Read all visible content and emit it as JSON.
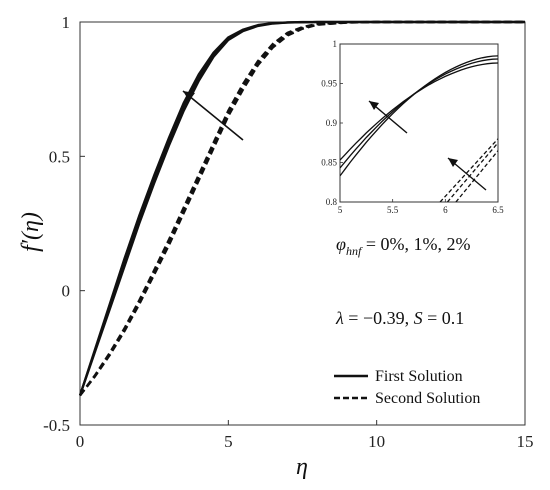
{
  "chart_data": {
    "type": "line",
    "xlabel": "η",
    "ylabel": "f′(η)",
    "xlim": [
      0,
      15
    ],
    "ylim": [
      -0.5,
      1
    ],
    "xticks": [
      "0",
      "5",
      "10",
      "15"
    ],
    "yticks": [
      "-0.5",
      "0",
      "0.5",
      "1"
    ],
    "grid": false,
    "legend_position": "bottom-right",
    "legend": [
      "First Solution",
      "Second Solution"
    ],
    "annotations": {
      "phi_text": "φhnf = 0%, 1%, 2%",
      "params_text": "λ = −0.39, S = 0.1"
    },
    "x": [
      0,
      0.5,
      1,
      1.5,
      2,
      2.5,
      3,
      3.5,
      4,
      4.5,
      5,
      5.5,
      6,
      6.5,
      7,
      7.5,
      8,
      9,
      10,
      11,
      12,
      13,
      14,
      15
    ],
    "series": [
      {
        "name": "First Solution",
        "style": "solid",
        "phi": "0%",
        "values": [
          -0.39,
          -0.23,
          -0.07,
          0.09,
          0.25,
          0.4,
          0.54,
          0.67,
          0.78,
          0.87,
          0.933,
          0.966,
          0.985,
          0.994,
          0.998,
          0.999,
          1,
          1,
          1,
          1,
          1,
          1,
          1,
          1
        ]
      },
      {
        "name": "First Solution",
        "style": "solid",
        "phi": "1%",
        "values": [
          -0.39,
          -0.225,
          -0.06,
          0.105,
          0.265,
          0.415,
          0.555,
          0.685,
          0.792,
          0.878,
          0.938,
          0.969,
          0.987,
          0.995,
          0.998,
          0.999,
          1,
          1,
          1,
          1,
          1,
          1,
          1,
          1
        ]
      },
      {
        "name": "First Solution",
        "style": "solid",
        "phi": "2%",
        "values": [
          -0.39,
          -0.22,
          -0.05,
          0.12,
          0.28,
          0.43,
          0.57,
          0.7,
          0.805,
          0.886,
          0.943,
          0.972,
          0.989,
          0.996,
          0.999,
          1,
          1,
          1,
          1,
          1,
          1,
          1,
          1,
          1
        ]
      },
      {
        "name": "Second Solution",
        "style": "dashed",
        "phi": "0%",
        "values": [
          -0.39,
          -0.32,
          -0.24,
          -0.15,
          -0.05,
          0.06,
          0.17,
          0.29,
          0.41,
          0.53,
          0.65,
          0.75,
          0.84,
          0.905,
          0.95,
          0.975,
          0.99,
          0.998,
          1,
          1,
          1,
          1,
          1,
          1
        ]
      },
      {
        "name": "Second Solution",
        "style": "dashed",
        "phi": "1%",
        "values": [
          -0.39,
          -0.318,
          -0.236,
          -0.145,
          -0.043,
          0.068,
          0.18,
          0.3,
          0.42,
          0.54,
          0.66,
          0.76,
          0.847,
          0.912,
          0.955,
          0.978,
          0.991,
          0.998,
          1,
          1,
          1,
          1,
          1,
          1
        ]
      },
      {
        "name": "Second Solution",
        "style": "dashed",
        "phi": "2%",
        "values": [
          -0.39,
          -0.316,
          -0.232,
          -0.14,
          -0.036,
          0.076,
          0.19,
          0.31,
          0.43,
          0.55,
          0.67,
          0.77,
          0.855,
          0.918,
          0.96,
          0.981,
          0.993,
          0.999,
          1,
          1,
          1,
          1,
          1,
          1
        ]
      }
    ],
    "inset": {
      "xlim": [
        5,
        6.5
      ],
      "ylim": [
        0.8,
        1
      ],
      "xticks": [
        "5",
        "5.5",
        "6",
        "6.5"
      ],
      "yticks": [
        "0.8",
        "0.85",
        "0.9",
        "0.95",
        "1"
      ]
    }
  }
}
